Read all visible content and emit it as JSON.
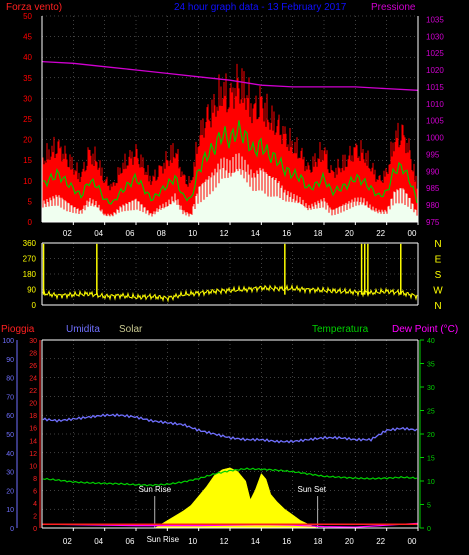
{
  "colors": {
    "background": "#000000",
    "axis": "#ffffff",
    "grid": "#808080",
    "wind_max": "#ff0000",
    "wind_avg": "#00c800",
    "wind_min": "#f0fff0",
    "pressure": "#d000d0",
    "direction": "#ffff00",
    "rain": "#ff2020",
    "humidity": "#7070ff",
    "solar": "#ffff00",
    "solar_label": "#c8c890",
    "temperature": "#00d000",
    "dewpoint": "#ff00ff",
    "title": "#1010ff"
  },
  "chart_data": [
    {
      "type": "line",
      "title": "24 hour graph data - 13 February 2017",
      "left_axis_label": "Forza vento)",
      "right_axis_label": "Pressione",
      "x_ticks": [
        "02",
        "04",
        "06",
        "08",
        "10",
        "12",
        "14",
        "16",
        "18",
        "20",
        "22",
        "00"
      ],
      "left_ticks": [
        0,
        5,
        10,
        15,
        20,
        25,
        30,
        35,
        40,
        45,
        50
      ],
      "right_ticks": [
        975,
        980,
        985,
        990,
        995,
        1000,
        1005,
        1010,
        1015,
        1020,
        1025,
        1030,
        1035
      ],
      "ylim_left": [
        0,
        50
      ],
      "ylim_right": [
        975,
        1036
      ],
      "xlim_hours": [
        0,
        24
      ],
      "series": [
        {
          "name": "gust",
          "x": [
            0,
            1,
            2,
            2.5,
            3,
            3.5,
            4,
            4.5,
            5,
            5.5,
            6,
            6.5,
            7,
            7.5,
            8,
            8.5,
            9,
            9.5,
            10,
            10.5,
            11,
            11.5,
            12,
            12.5,
            13,
            13.5,
            14,
            14.5,
            15,
            15.5,
            16,
            16.5,
            17,
            17.5,
            18,
            18.5,
            19,
            19.5,
            20,
            20.5,
            21,
            21.5,
            22,
            22.5,
            23,
            23.5,
            24
          ],
          "values": [
            18,
            22,
            16,
            13,
            20,
            18,
            12,
            10,
            15,
            18,
            20,
            16,
            12,
            15,
            18,
            21,
            13,
            11,
            24,
            30,
            33,
            38,
            36,
            40,
            38,
            32,
            35,
            30,
            28,
            25,
            22,
            20,
            15,
            18,
            21,
            14,
            16,
            18,
            21,
            20,
            16,
            12,
            14,
            24,
            26,
            20,
            9
          ]
        },
        {
          "name": "avg",
          "x": [
            0,
            1,
            2,
            2.5,
            3,
            3.5,
            4,
            4.5,
            5,
            5.5,
            6,
            6.5,
            7,
            7.5,
            8,
            8.5,
            9,
            9.5,
            10,
            10.5,
            11,
            11.5,
            12,
            12.5,
            13,
            13.5,
            14,
            14.5,
            15,
            15.5,
            16,
            16.5,
            17,
            17.5,
            18,
            18.5,
            19,
            19.5,
            20,
            20.5,
            21,
            21.5,
            22,
            22.5,
            23,
            23.5,
            24
          ],
          "values": [
            10,
            13,
            9,
            7,
            11,
            10,
            6,
            5,
            8,
            10,
            12,
            9,
            6,
            8,
            10,
            12,
            7,
            6,
            14,
            18,
            20,
            24,
            22,
            25,
            23,
            19,
            21,
            18,
            17,
            14,
            13,
            12,
            9,
            10,
            12,
            8,
            9,
            10,
            12,
            11,
            9,
            7,
            8,
            14,
            15,
            11,
            5
          ]
        },
        {
          "name": "min",
          "x": [
            0,
            1,
            2,
            2.5,
            3,
            3.5,
            4,
            4.5,
            5,
            5.5,
            6,
            6.5,
            7,
            7.5,
            8,
            8.5,
            9,
            9.5,
            10,
            10.5,
            11,
            11.5,
            12,
            12.5,
            13,
            13.5,
            14,
            14.5,
            15,
            15.5,
            16,
            16.5,
            17,
            17.5,
            18,
            18.5,
            19,
            19.5,
            20,
            20.5,
            21,
            21.5,
            22,
            22.5,
            23,
            23.5,
            24
          ],
          "values": [
            5,
            7,
            4,
            3,
            6,
            5,
            2,
            2,
            4,
            5,
            6,
            4,
            2,
            4,
            5,
            7,
            3,
            2,
            9,
            11,
            13,
            16,
            15,
            17,
            15,
            12,
            14,
            12,
            11,
            8,
            7,
            6,
            4,
            5,
            6,
            3,
            4,
            5,
            6,
            6,
            4,
            3,
            3,
            8,
            9,
            6,
            2
          ]
        },
        {
          "name": "pressure",
          "x": [
            0,
            2,
            4,
            6,
            8,
            10,
            12,
            14,
            16,
            18,
            20,
            22,
            24
          ],
          "values": [
            1022.5,
            1022,
            1021,
            1020,
            1019,
            1018,
            1017,
            1015.5,
            1015,
            1015,
            1015,
            1014.5,
            1014
          ]
        }
      ]
    },
    {
      "type": "line",
      "y_ticks": [
        0,
        90,
        180,
        270,
        360
      ],
      "right_labels": [
        "N",
        "W",
        "S",
        "E",
        "N"
      ],
      "ylim": [
        0,
        360
      ],
      "xlim_hours": [
        0,
        24
      ],
      "series": [
        {
          "name": "wind_direction",
          "x": [
            0,
            1,
            2,
            3,
            4,
            5,
            6,
            7,
            8,
            9,
            10,
            11,
            12,
            13,
            14,
            15,
            16,
            17,
            18,
            19,
            20,
            21,
            22,
            23,
            24
          ],
          "values": [
            70,
            55,
            60,
            65,
            50,
            55,
            45,
            50,
            40,
            60,
            70,
            80,
            85,
            90,
            100,
            95,
            95,
            90,
            85,
            80,
            75,
            70,
            80,
            70,
            50
          ]
        }
      ],
      "spikes_hours": [
        0.1,
        3.5,
        15.5,
        20.4,
        20.6,
        20.8,
        22.9
      ]
    },
    {
      "type": "area",
      "labels": {
        "rain": "Pioggia",
        "humidity": "Umidita",
        "solar": "Solar",
        "temperature": "Temperatura",
        "dewpoint": "Dew Point (°C)"
      },
      "outer_left_ticks": [
        0,
        10,
        20,
        30,
        40,
        50,
        60,
        70,
        80,
        90,
        100
      ],
      "inner_left_ticks": [
        0,
        2,
        4,
        6,
        8,
        10,
        12,
        14,
        16,
        18,
        20,
        22,
        24,
        26,
        28,
        30
      ],
      "right_ticks": [
        0,
        5,
        10,
        15,
        20,
        25,
        30,
        35,
        40
      ],
      "ylim_outer": [
        0,
        100
      ],
      "ylim_right": [
        0,
        40
      ],
      "xlim_hours": [
        0,
        24
      ],
      "sunrise_label": "Sun Rise",
      "sunset_label": "Sun Set",
      "sunrise_hour": 7.2,
      "sunset_hour": 17.6,
      "series": [
        {
          "name": "humidity",
          "x": [
            0,
            1,
            2,
            3,
            4,
            5,
            6,
            7,
            8,
            9,
            10,
            11,
            12,
            13,
            14,
            15,
            16,
            17,
            18,
            19,
            20,
            21,
            22,
            23,
            24
          ],
          "values": [
            58,
            57,
            58,
            59,
            60,
            60,
            59,
            57,
            56,
            55,
            52,
            50,
            48,
            47,
            47,
            46,
            46,
            47,
            48,
            48,
            47,
            47,
            52,
            53,
            52
          ]
        },
        {
          "name": "temperature",
          "x": [
            0,
            1,
            2,
            3,
            4,
            5,
            6,
            7,
            8,
            9,
            10,
            11,
            12,
            13,
            14,
            15,
            16,
            17,
            18,
            19,
            20,
            21,
            22,
            23,
            24
          ],
          "values": [
            10.5,
            10.2,
            9.8,
            9.6,
            9.5,
            9.4,
            9.2,
            9.1,
            9.3,
            9.8,
            10.5,
            11.5,
            12.2,
            12.6,
            12.5,
            12.3,
            12.0,
            11.5,
            11.0,
            10.8,
            10.6,
            10.5,
            10.6,
            10.8,
            10.6
          ]
        },
        {
          "name": "dewpoint",
          "x": [
            0,
            2,
            4,
            6,
            8,
            10,
            12,
            14,
            16,
            18,
            20,
            22,
            24
          ],
          "values": [
            0.8,
            0.7,
            0.6,
            0.5,
            0.5,
            0.5,
            0.6,
            0.7,
            0.6,
            0.3,
            0.2,
            0.6,
            1.0
          ]
        },
        {
          "name": "solar",
          "x": [
            7.2,
            8,
            9,
            9.5,
            10,
            10.5,
            11,
            11.5,
            12,
            12.5,
            13,
            13.3,
            13.6,
            14,
            14.3,
            14.6,
            15,
            15.5,
            16,
            16.5,
            17,
            17.6
          ],
          "values": [
            0,
            4,
            9,
            12,
            17,
            22,
            28,
            31,
            32,
            30,
            25,
            15,
            20,
            29,
            26,
            18,
            14,
            10,
            7,
            4,
            2,
            0
          ]
        },
        {
          "name": "rain",
          "x": [
            0,
            24
          ],
          "values": [
            2,
            2
          ]
        }
      ]
    }
  ]
}
